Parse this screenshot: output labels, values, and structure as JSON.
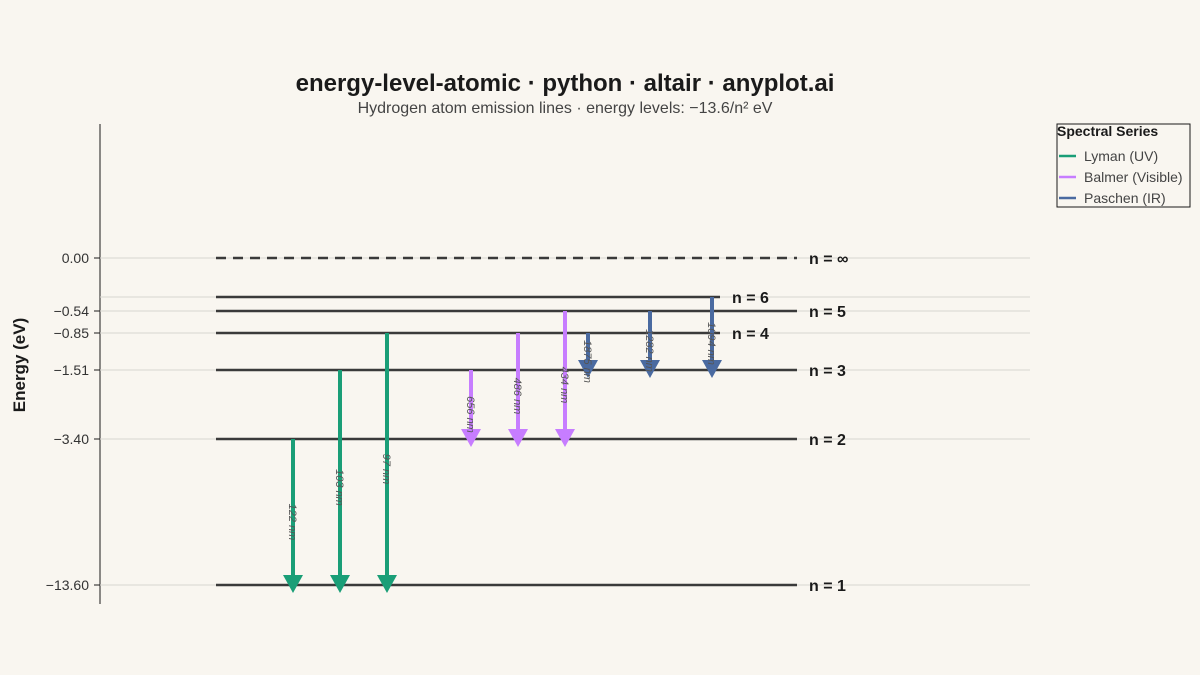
{
  "title": "energy-level-atomic · python · altair · anyplot.ai",
  "subtitle": "Hydrogen atom emission lines · energy levels: −13.6/n² eV",
  "chart_data": {
    "type": "energy-level-diagram",
    "ylabel": "Energy (eV)",
    "ytick_labels": [
      "0.00",
      "−0.54",
      "−0.85",
      "−1.51",
      "−3.40",
      "−13.60"
    ],
    "levels": [
      {
        "n": "∞",
        "energy": 0.0,
        "label": "n = ∞",
        "dashed": true
      },
      {
        "n": "6",
        "energy": -0.378,
        "label": "n = 6",
        "dashed": false
      },
      {
        "n": "5",
        "energy": -0.544,
        "label": "n = 5",
        "dashed": false
      },
      {
        "n": "4",
        "energy": -0.85,
        "label": "n = 4",
        "dashed": false
      },
      {
        "n": "3",
        "energy": -1.511,
        "label": "n = 3",
        "dashed": false
      },
      {
        "n": "2",
        "energy": -3.4,
        "label": "n = 2",
        "dashed": false
      },
      {
        "n": "1",
        "energy": -13.6,
        "label": "n = 1",
        "dashed": false
      }
    ],
    "transitions": [
      {
        "series": "Lyman (UV)",
        "from": 2,
        "to": 1,
        "label": "122 nm"
      },
      {
        "series": "Lyman (UV)",
        "from": 3,
        "to": 1,
        "label": "103 nm"
      },
      {
        "series": "Lyman (UV)",
        "from": 4,
        "to": 1,
        "label": "97 nm"
      },
      {
        "series": "Balmer (Visible)",
        "from": 3,
        "to": 2,
        "label": "656 nm"
      },
      {
        "series": "Balmer (Visible)",
        "from": 4,
        "to": 2,
        "label": "486 nm"
      },
      {
        "series": "Balmer (Visible)",
        "from": 5,
        "to": 2,
        "label": "434 nm"
      },
      {
        "series": "Paschen (IR)",
        "from": 4,
        "to": 3,
        "label": "1875 nm"
      },
      {
        "series": "Paschen (IR)",
        "from": 5,
        "to": 3,
        "label": "1282 nm"
      },
      {
        "series": "Paschen (IR)",
        "from": 6,
        "to": 3,
        "label": "1094 nm"
      }
    ],
    "legend": {
      "title": "Spectral Series",
      "placement": "top-right",
      "items": [
        {
          "label": "Lyman (UV)",
          "color": "#1a9e77"
        },
        {
          "label": "Balmer (Visible)",
          "color": "#c77dff"
        },
        {
          "label": "Paschen (IR)",
          "color": "#4a6aa0"
        }
      ]
    },
    "colors": {
      "level_line": "#3a3a3a",
      "grid": "#d8d5cf",
      "background": "#f9f6f0"
    }
  }
}
